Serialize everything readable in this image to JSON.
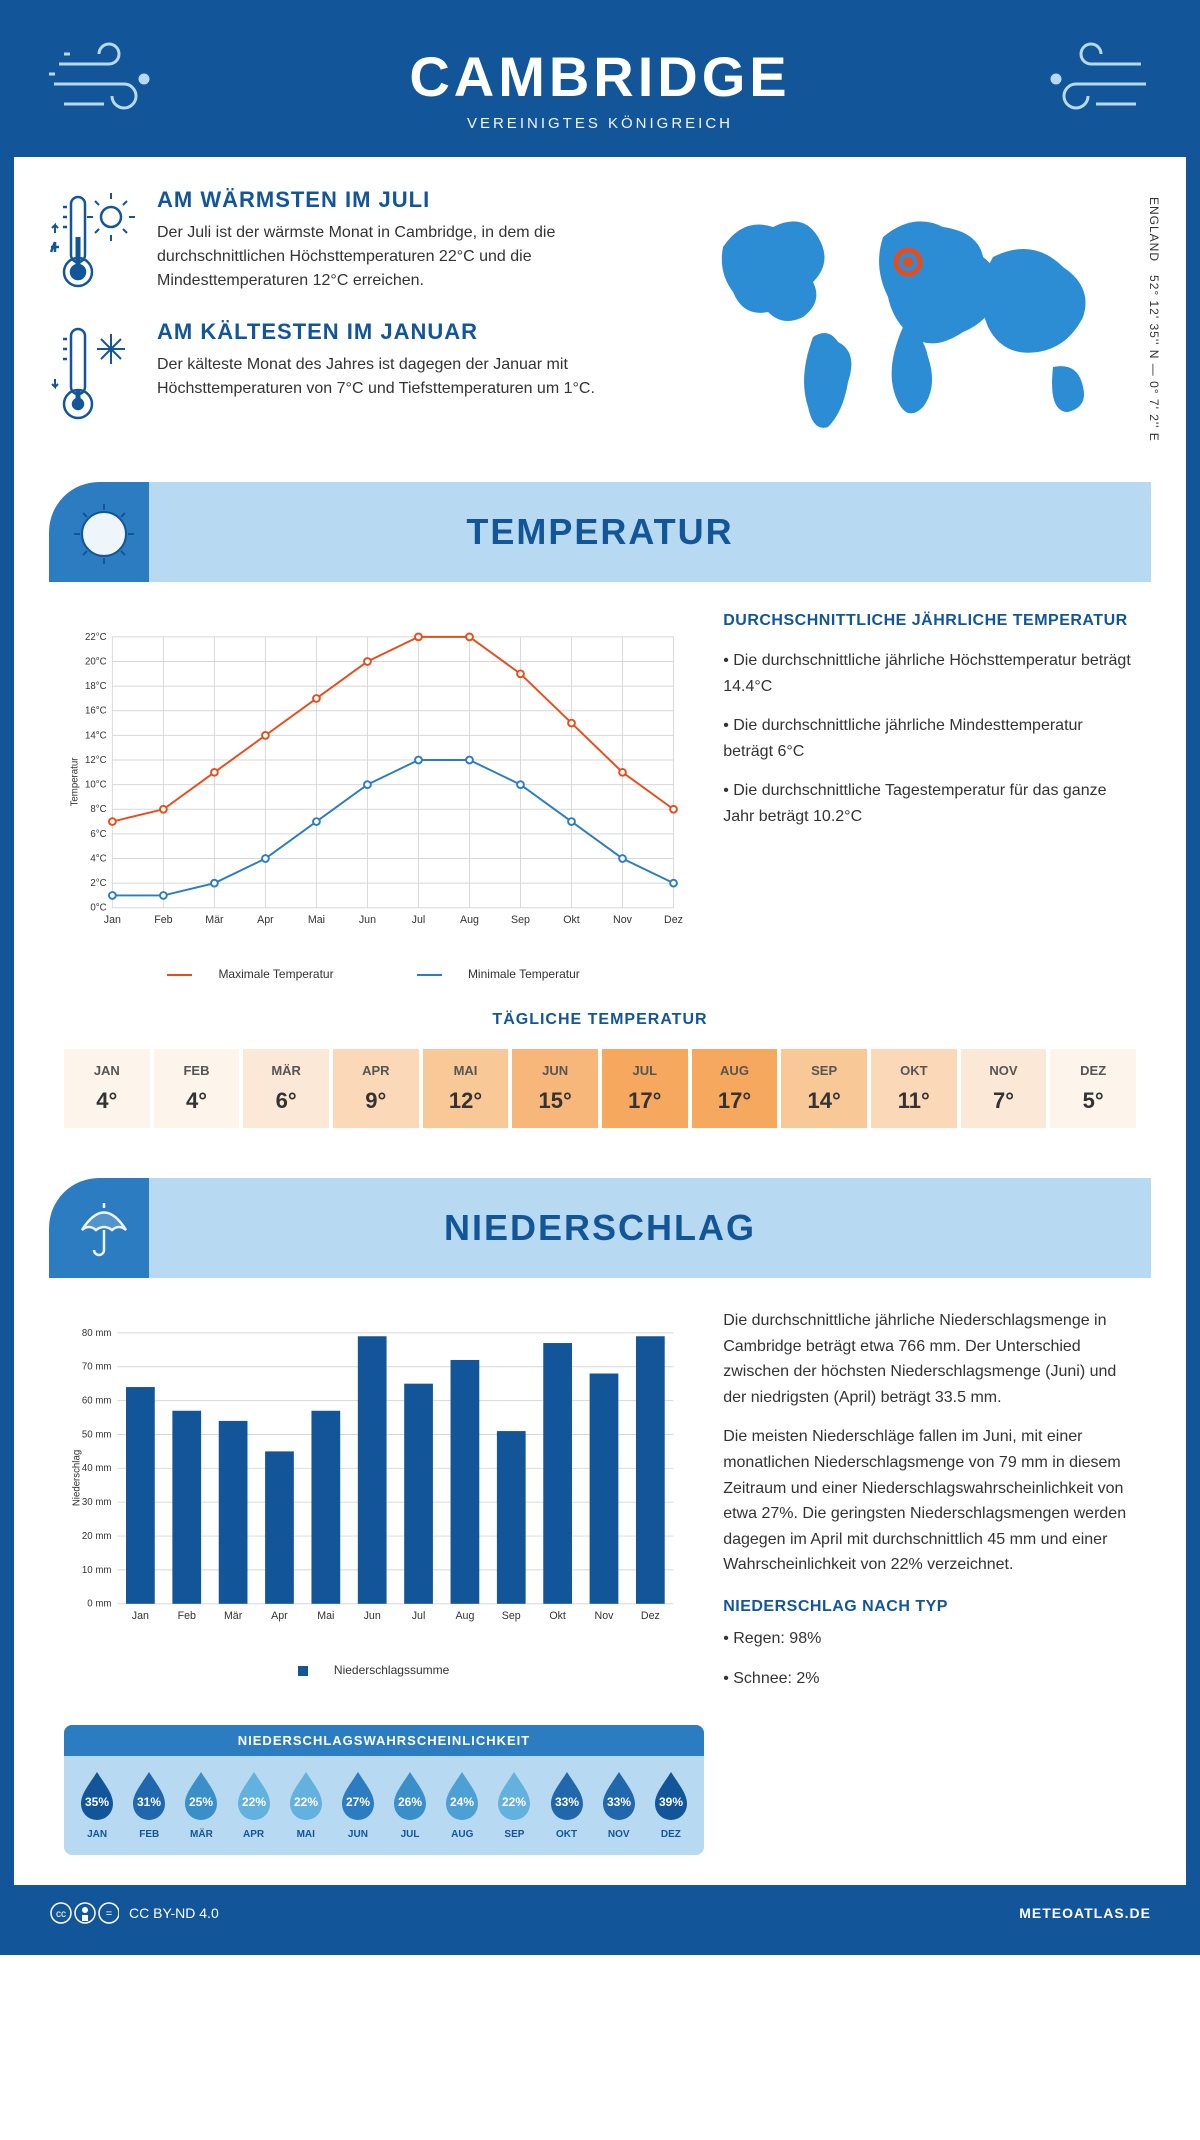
{
  "header": {
    "city": "CAMBRIDGE",
    "country": "VEREINIGTES KÖNIGREICH"
  },
  "coords": {
    "lat": "52° 12' 35'' N — 0° 7' 2'' E",
    "region": "ENGLAND"
  },
  "facts": {
    "warm": {
      "title": "AM WÄRMSTEN IM JULI",
      "text": "Der Juli ist der wärmste Monat in Cambridge, in dem die durchschnittlichen Höchsttemperaturen 22°C und die Mindesttemperaturen 12°C erreichen."
    },
    "cold": {
      "title": "AM KÄLTESTEN IM JANUAR",
      "text": "Der kälteste Monat des Jahres ist dagegen der Januar mit Höchsttemperaturen von 7°C und Tiefsttemperaturen um 1°C."
    }
  },
  "sections": {
    "temp": "TEMPERATUR",
    "precip": "NIEDERSCHLAG"
  },
  "months": [
    "Jan",
    "Feb",
    "Mär",
    "Apr",
    "Mai",
    "Jun",
    "Jul",
    "Aug",
    "Sep",
    "Okt",
    "Nov",
    "Dez"
  ],
  "months_upper": [
    "JAN",
    "FEB",
    "MÄR",
    "APR",
    "MAI",
    "JUN",
    "JUL",
    "AUG",
    "SEP",
    "OKT",
    "NOV",
    "DEZ"
  ],
  "temp_chart": {
    "ylabel": "Temperatur",
    "ylim": [
      0,
      22
    ],
    "ytick_step": 2,
    "max": [
      7,
      8,
      11,
      14,
      17,
      20,
      22,
      22,
      19,
      15,
      11,
      8
    ],
    "min": [
      1,
      1,
      2,
      4,
      7,
      10,
      12,
      12,
      10,
      7,
      4,
      2
    ],
    "max_color": "#e84c1a",
    "min_color": "#2c7cc2",
    "grid_color": "#d8d8d8",
    "bg": "#ffffff",
    "marker": "circle",
    "line_width": 2,
    "legend": {
      "max": "Maximale Temperatur",
      "min": "Minimale Temperatur"
    }
  },
  "temp_text": {
    "heading": "DURCHSCHNITTLICHE JÄHRLICHE TEMPERATUR",
    "b1": "• Die durchschnittliche jährliche Höchsttemperatur beträgt 14.4°C",
    "b2": "• Die durchschnittliche jährliche Mindesttemperatur beträgt 6°C",
    "b3": "• Die durchschnittliche Tagestemperatur für das ganze Jahr beträgt 10.2°C"
  },
  "daily": {
    "heading": "TÄGLICHE TEMPERATUR",
    "values": [
      "4°",
      "4°",
      "6°",
      "9°",
      "12°",
      "15°",
      "17°",
      "17°",
      "14°",
      "11°",
      "7°",
      "5°"
    ],
    "colors": [
      "#fdf4ec",
      "#fdf4ec",
      "#fce8d6",
      "#fbd9b8",
      "#f9c897",
      "#f8b77a",
      "#f6a85f",
      "#f6a85f",
      "#f9c897",
      "#fbd9b8",
      "#fce8d6",
      "#fdf4ec"
    ]
  },
  "precip_chart": {
    "ylabel": "Niederschlag",
    "ylim": [
      0,
      80
    ],
    "ytick_step": 10,
    "values": [
      64,
      57,
      54,
      45,
      57,
      79,
      65,
      72,
      51,
      77,
      68,
      79
    ],
    "bar_color": "#125699",
    "grid_color": "#d8d8d8",
    "legend": "Niederschlagssumme"
  },
  "precip_text": {
    "p1": "Die durchschnittliche jährliche Niederschlagsmenge in Cambridge beträgt etwa 766 mm. Der Unterschied zwischen der höchsten Niederschlagsmenge (Juni) und der niedrigsten (April) beträgt 33.5 mm.",
    "p2": "Die meisten Niederschläge fallen im Juni, mit einer monatlichen Niederschlagsmenge von 79 mm in diesem Zeitraum und einer Niederschlagswahrscheinlichkeit von etwa 27%. Die geringsten Niederschlagsmengen werden dagegen im April mit durchschnittlich 45 mm und einer Wahrscheinlichkeit von 22% verzeichnet."
  },
  "precip_prob": {
    "heading": "NIEDERSCHLAGSWAHRSCHEINLICHKEIT",
    "values": [
      "35%",
      "31%",
      "25%",
      "22%",
      "22%",
      "27%",
      "26%",
      "24%",
      "22%",
      "33%",
      "33%",
      "39%"
    ],
    "colors": [
      "#125699",
      "#2068ab",
      "#3a8fc9",
      "#63b1de",
      "#63b1de",
      "#2c7cc2",
      "#3a8fc9",
      "#4da0d4",
      "#63b1de",
      "#2068ab",
      "#2068ab",
      "#125699"
    ]
  },
  "precip_type": {
    "heading": "NIEDERSCHLAG NACH TYP",
    "rain": "• Regen: 98%",
    "snow": "• Schnee: 2%"
  },
  "footer": {
    "license": "CC BY-ND 4.0",
    "site": "METEOATLAS.DE"
  },
  "palette": {
    "primary": "#125699",
    "accent": "#2c7cc2",
    "light": "#b8d9f2"
  }
}
